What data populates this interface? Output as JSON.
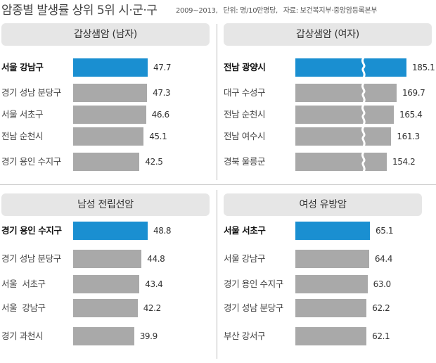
{
  "header": {
    "title": "암종별 발생률 상위 5위 시·군·구",
    "years": "2009~2013,",
    "unit": "단위: 명/10만명당,",
    "source": "자료: 보건복지부·중앙암등록본부"
  },
  "colors": {
    "highlight": "#1a8fd1",
    "bar": "#a9a9a9",
    "panel_header": "#e6e6e6"
  },
  "chart_data": [
    {
      "type": "bar",
      "title": "갑상샘암 (남자)",
      "categories": [
        "서울 강남구",
        "경기 성남 분당구",
        "서울 서초구",
        "전남 순천시",
        "경기 용인 수지구"
      ],
      "values": [
        47.7,
        47.3,
        46.6,
        45.1,
        42.5
      ],
      "value_labels": [
        "47.7",
        "47.3",
        "46.6",
        "45.1",
        "42.5"
      ],
      "highlight_index": 0,
      "axis_break": false
    },
    {
      "type": "bar",
      "title": "갑상샘암 (여자)",
      "categories": [
        "전남 광양시",
        "대구 수성구",
        "전남 순천시",
        "전남 여수시",
        "경북 울릉군"
      ],
      "values": [
        185.1,
        169.7,
        165.4,
        161.3,
        154.2
      ],
      "value_labels": [
        "185.1",
        "169.7",
        "165.4",
        "161.3",
        "154.2"
      ],
      "highlight_index": 0,
      "axis_break": true
    },
    {
      "type": "bar",
      "title": "남성 전립선암",
      "categories": [
        "경기 용인 수지구",
        "경기 성남 분당구",
        "서울  서초구",
        "서울  강남구",
        "경기 과천시"
      ],
      "values": [
        48.8,
        44.8,
        43.4,
        42.2,
        39.9
      ],
      "value_labels": [
        "48.8",
        "44.8",
        "43.4",
        "42.2",
        "39.9"
      ],
      "highlight_index": 0,
      "axis_break": false
    },
    {
      "type": "bar",
      "title": "여성 유방암",
      "categories": [
        "서울 서초구",
        "서울 강남구",
        "경기 용인 수지구",
        "경기 성남 분당구",
        "부산 강서구"
      ],
      "values": [
        65.1,
        64.4,
        63.0,
        62.2,
        62.1
      ],
      "value_labels": [
        "65.1",
        "64.4",
        "63.0",
        "62.2",
        "62.1"
      ],
      "highlight_index": 0,
      "axis_break": false
    }
  ]
}
